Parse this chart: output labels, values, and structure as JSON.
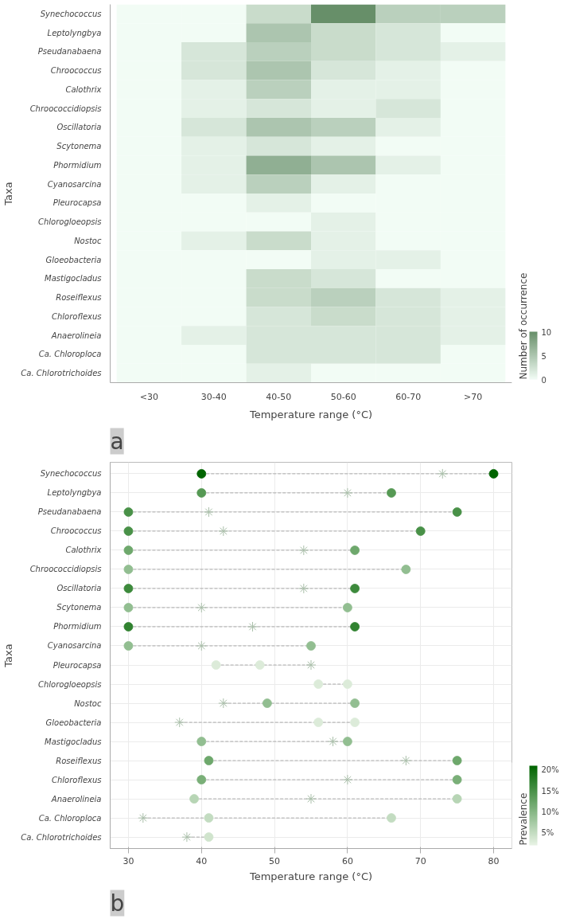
{
  "chart_data": [
    {
      "type": "heatmap",
      "xlabel": "Temperature range (°C)",
      "ylabel": "Taxa",
      "clabel": "Number of occurrence",
      "categories": [
        "<30",
        "30-40",
        "40-50",
        "50-60",
        "60-70",
        ">70"
      ],
      "y_categories": [
        "Synechococcus",
        "Leptolyngbya",
        "Pseudanabaena",
        "Chroococcus",
        "Calothrix",
        "Chroococcidiopsis",
        "Oscillatoria",
        "Scytonema",
        "Phormidium",
        "Cyanosarcina",
        "Pleurocapsa",
        "Chlorogloeopsis",
        "Nostoc",
        "Gloeobacteria",
        "Mastigocladus",
        "Roseiflexus",
        "Chloroflexus",
        "Anaerolineia",
        "Ca. Chloroploca",
        "Ca. Chlorotrichoides"
      ],
      "cells": [
        [
          0,
          0,
          3,
          10,
          4,
          4
        ],
        [
          0,
          0,
          5,
          3,
          2,
          0
        ],
        [
          0,
          2,
          4,
          3,
          2,
          1
        ],
        [
          0,
          2,
          5,
          2,
          1,
          0
        ],
        [
          0,
          1,
          4,
          1,
          1,
          0
        ],
        [
          0,
          1,
          2,
          1,
          2,
          0
        ],
        [
          0,
          2,
          5,
          4,
          1,
          0
        ],
        [
          0,
          1,
          2,
          1,
          0,
          0
        ],
        [
          0,
          1,
          7,
          5,
          1,
          0
        ],
        [
          0,
          1,
          4,
          1,
          0,
          0
        ],
        [
          0,
          0,
          1,
          0,
          0,
          0
        ],
        [
          0,
          0,
          0,
          1,
          0,
          0
        ],
        [
          0,
          1,
          3,
          1,
          0,
          0
        ],
        [
          0,
          0,
          0,
          1,
          1,
          0
        ],
        [
          0,
          0,
          3,
          2,
          0,
          0
        ],
        [
          0,
          0,
          3,
          4,
          2,
          1
        ],
        [
          0,
          0,
          2,
          3,
          2,
          1
        ],
        [
          0,
          1,
          2,
          2,
          2,
          1
        ],
        [
          0,
          0,
          2,
          2,
          2,
          0
        ],
        [
          0,
          0,
          1,
          0,
          0,
          0
        ]
      ],
      "colors": [
        "#f2fcf5",
        "#678f69"
      ],
      "clim": [
        0,
        10
      ],
      "cticks": [
        0,
        5,
        10
      ],
      "grid": false,
      "annotations": [
        "a"
      ]
    },
    {
      "type": "scatter",
      "orientation": "horizontal",
      "xlabel": "Temperature range (°C)",
      "ylabel": "Taxa",
      "clabel": "Prevalence",
      "categories": [
        "Synechococcus",
        "Leptolyngbya",
        "Pseudanabaena",
        "Chroococcus",
        "Calothrix",
        "Chroococcidiopsis",
        "Oscillatoria",
        "Scytonema",
        "Phormidium",
        "Cyanosarcina",
        "Pleurocapsa",
        "Chlorogloeopsis",
        "Nostoc",
        "Gloeobacteria",
        "Mastigocladus",
        "Roseiflexus",
        "Chloroflexus",
        "Anaerolineia",
        "Ca. Chloroploca",
        "Ca. Chlorotrichoides"
      ],
      "series": [
        {
          "marker": "circle",
          "values": [
            40,
            40,
            30,
            30,
            30,
            30,
            30,
            30,
            30,
            30,
            42,
            56,
            49,
            56,
            40,
            41,
            40,
            39,
            41,
            41
          ],
          "cvalues": [
            21,
            14,
            15,
            15,
            12,
            9,
            16,
            9,
            17,
            9,
            3,
            3,
            9,
            3,
            9,
            12,
            11,
            6,
            5,
            4
          ],
          "colors": [
            "#006400",
            "#569954",
            "#499148",
            "#499148",
            "#6ea86c",
            "#92be91",
            "#3d8a3c",
            "#92be91",
            "#318230",
            "#92be91",
            "#dcebd9",
            "#dcebd9",
            "#92be91",
            "#dcebd9",
            "#92be91",
            "#6ea86c",
            "#7aaf78",
            "#b7d5b5",
            "#c3dcc1",
            "#d0e4cd"
          ]
        },
        {
          "marker": "circle",
          "values": [
            80,
            66,
            75,
            70,
            61,
            68,
            61,
            60,
            61,
            55,
            48,
            60,
            61,
            61,
            60,
            75,
            75,
            75,
            66,
            null
          ],
          "cvalues": [
            21,
            14,
            15,
            15,
            12,
            9,
            16,
            9,
            17,
            9,
            3,
            3,
            9,
            3,
            9,
            12,
            11,
            6,
            5,
            null
          ],
          "colors": [
            "#006400",
            "#569954",
            "#499148",
            "#499148",
            "#6ea86c",
            "#92be91",
            "#3d8a3c",
            "#92be91",
            "#318230",
            "#92be91",
            "#dcebd9",
            "#dcebd9",
            "#92be91",
            "#dcebd9",
            "#92be91",
            "#6ea86c",
            "#7aaf78",
            "#b7d5b5",
            "#c3dcc1",
            null
          ]
        },
        {
          "marker": "cross",
          "color": "#a9bfa9",
          "values": [
            73,
            60,
            41,
            43,
            54,
            null,
            54,
            40,
            47,
            40,
            55,
            null,
            43,
            37,
            58,
            68,
            60,
            55,
            32,
            38
          ]
        }
      ],
      "colors": [
        "#e8f3e5",
        "#006400"
      ],
      "clim": [
        2,
        21
      ],
      "cticks": [
        {
          "value": 5,
          "label": "5%"
        },
        {
          "value": 10,
          "label": "10%"
        },
        {
          "value": 15,
          "label": "15%"
        },
        {
          "value": 20,
          "label": "20%"
        }
      ],
      "xlim": [
        27.5,
        82.5
      ],
      "xticks": [
        30,
        40,
        50,
        60,
        70,
        80
      ],
      "grid": true,
      "line_style": "dashed",
      "annotations": [
        "b"
      ]
    }
  ]
}
